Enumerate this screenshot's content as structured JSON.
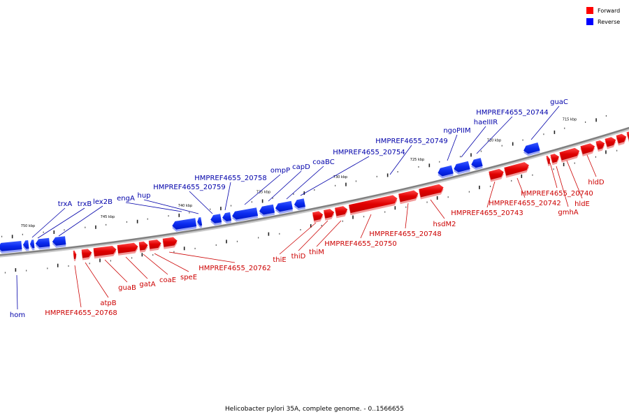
{
  "caption": "Helicobacter pylori 35A, complete genome. - 0..1566655",
  "legend": [
    {
      "label": "Forward",
      "color": "#ff0000"
    },
    {
      "label": "Reverse",
      "color": "#0000ff"
    }
  ],
  "ticks": [
    "750 kbp",
    "745 kbp",
    "740 kbp",
    "735 kbp",
    "730 kbp",
    "725 kbp",
    "720 kbp",
    "715 kbp"
  ],
  "genes": [
    {
      "name": "hom",
      "strand": "reverse"
    },
    {
      "name": "trxA",
      "strand": "reverse"
    },
    {
      "name": "trxB",
      "strand": "reverse"
    },
    {
      "name": "lex2B",
      "strand": "reverse"
    },
    {
      "name": "engA",
      "strand": "reverse"
    },
    {
      "name": "hup",
      "strand": "reverse"
    },
    {
      "name": "HMPREF4655_20759",
      "strand": "reverse"
    },
    {
      "name": "HMPREF4655_20758",
      "strand": "reverse"
    },
    {
      "name": "ompP",
      "strand": "reverse"
    },
    {
      "name": "capD",
      "strand": "reverse"
    },
    {
      "name": "coaBC",
      "strand": "reverse"
    },
    {
      "name": "HMPREF4655_20754",
      "strand": "reverse"
    },
    {
      "name": "HMPREF4655_20749",
      "strand": "reverse"
    },
    {
      "name": "ngoPIIM",
      "strand": "reverse"
    },
    {
      "name": "haeIIIR",
      "strand": "reverse"
    },
    {
      "name": "HMPREF4655_20744",
      "strand": "reverse"
    },
    {
      "name": "guaC",
      "strand": "reverse"
    },
    {
      "name": "HMPREF4655_20768",
      "strand": "forward"
    },
    {
      "name": "atpB",
      "strand": "forward"
    },
    {
      "name": "guaB",
      "strand": "forward"
    },
    {
      "name": "gatA",
      "strand": "forward"
    },
    {
      "name": "coaE",
      "strand": "forward"
    },
    {
      "name": "speE",
      "strand": "forward"
    },
    {
      "name": "HMPREF4655_20762",
      "strand": "forward"
    },
    {
      "name": "thiE",
      "strand": "forward"
    },
    {
      "name": "thiD",
      "strand": "forward"
    },
    {
      "name": "thiM",
      "strand": "forward"
    },
    {
      "name": "HMPREF4655_20750",
      "strand": "forward"
    },
    {
      "name": "HMPREF4655_20748",
      "strand": "forward"
    },
    {
      "name": "hsdM2",
      "strand": "forward"
    },
    {
      "name": "HMPREF4655_20743",
      "strand": "forward"
    },
    {
      "name": "HMPREF4655_20742",
      "strand": "forward"
    },
    {
      "name": "HMPREF4655_20740",
      "strand": "forward"
    },
    {
      "name": "gmhA",
      "strand": "forward"
    },
    {
      "name": "hldE",
      "strand": "forward"
    },
    {
      "name": "hldD",
      "strand": "forward"
    }
  ]
}
